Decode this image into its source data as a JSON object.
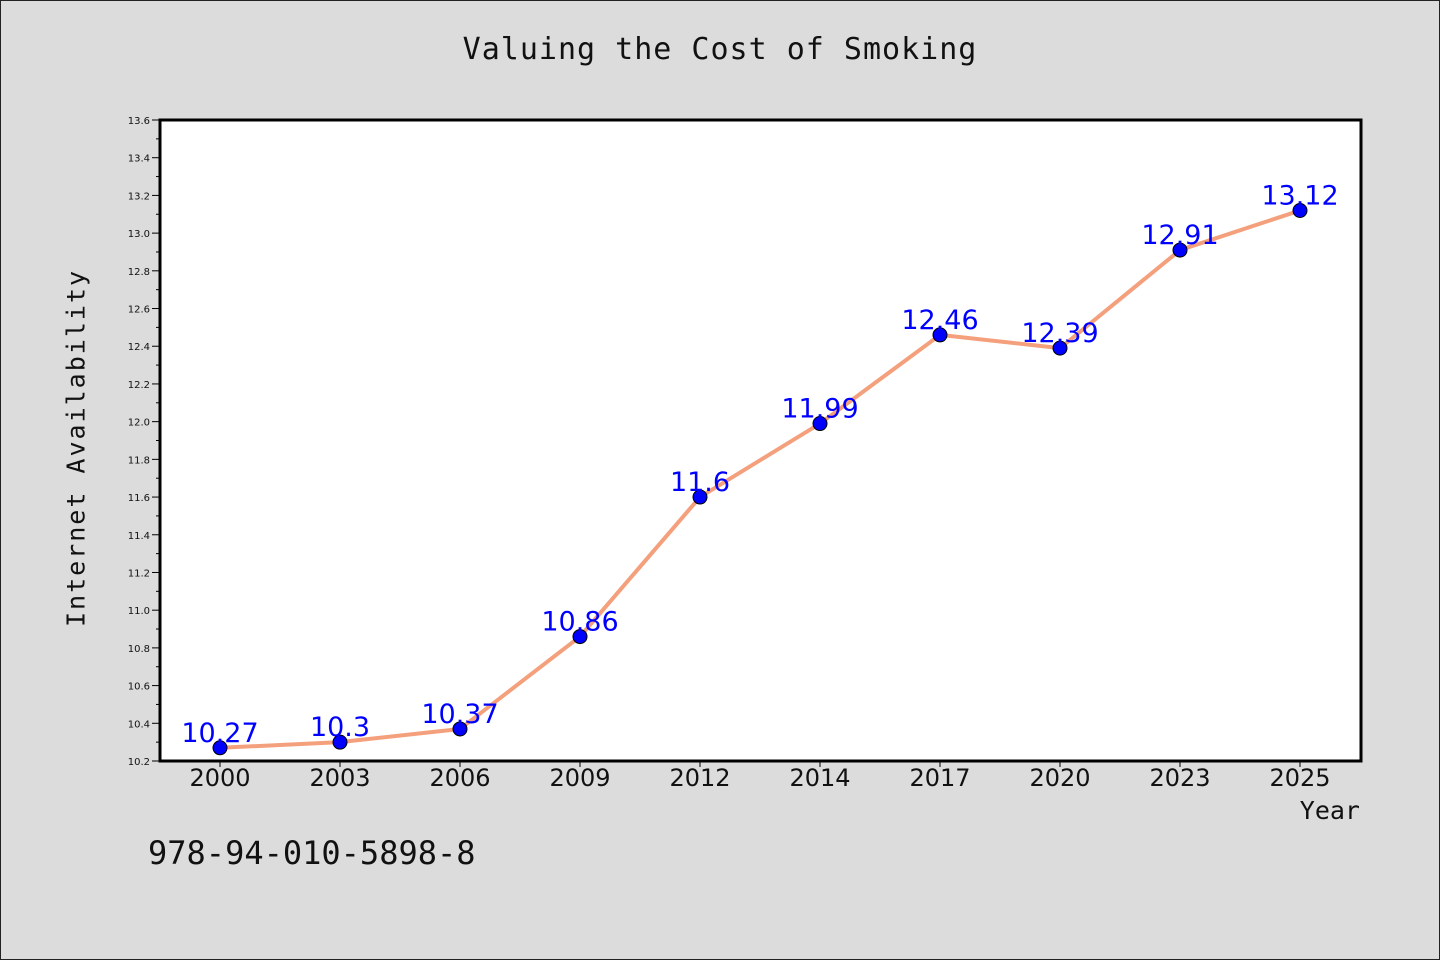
{
  "title": "Valuing the Cost of Smoking",
  "footer_code": "978-94-010-5898-8",
  "chart_data": {
    "type": "line",
    "title": "Valuing the Cost of Smoking",
    "xlabel": "Year",
    "ylabel": "Internet Availability",
    "categories": [
      "2000",
      "2003",
      "2006",
      "2009",
      "2012",
      "2014",
      "2017",
      "2020",
      "2023",
      "2025"
    ],
    "series": [
      {
        "values": [
          10.27,
          10.3,
          10.37,
          10.86,
          11.6,
          11.99,
          12.46,
          12.39,
          12.91,
          13.12
        ],
        "labels": [
          "10.27",
          "10.3",
          "10.37",
          "10.86",
          "11.6",
          "11.99",
          "12.46",
          "12.39",
          "12.91",
          "13.12"
        ],
        "line_color": "#f4a07c",
        "marker_color": "#0000ff"
      }
    ],
    "ylim": [
      10.2,
      13.6
    ],
    "yticks": [
      "10.2",
      "10.4",
      "10.6",
      "10.8",
      "11.0",
      "11.2",
      "11.4",
      "11.6",
      "11.8",
      "12.0",
      "12.2",
      "12.4",
      "12.6",
      "12.8",
      "13.0",
      "13.2",
      "13.4",
      "13.6"
    ],
    "grid": false,
    "legend": "none"
  }
}
